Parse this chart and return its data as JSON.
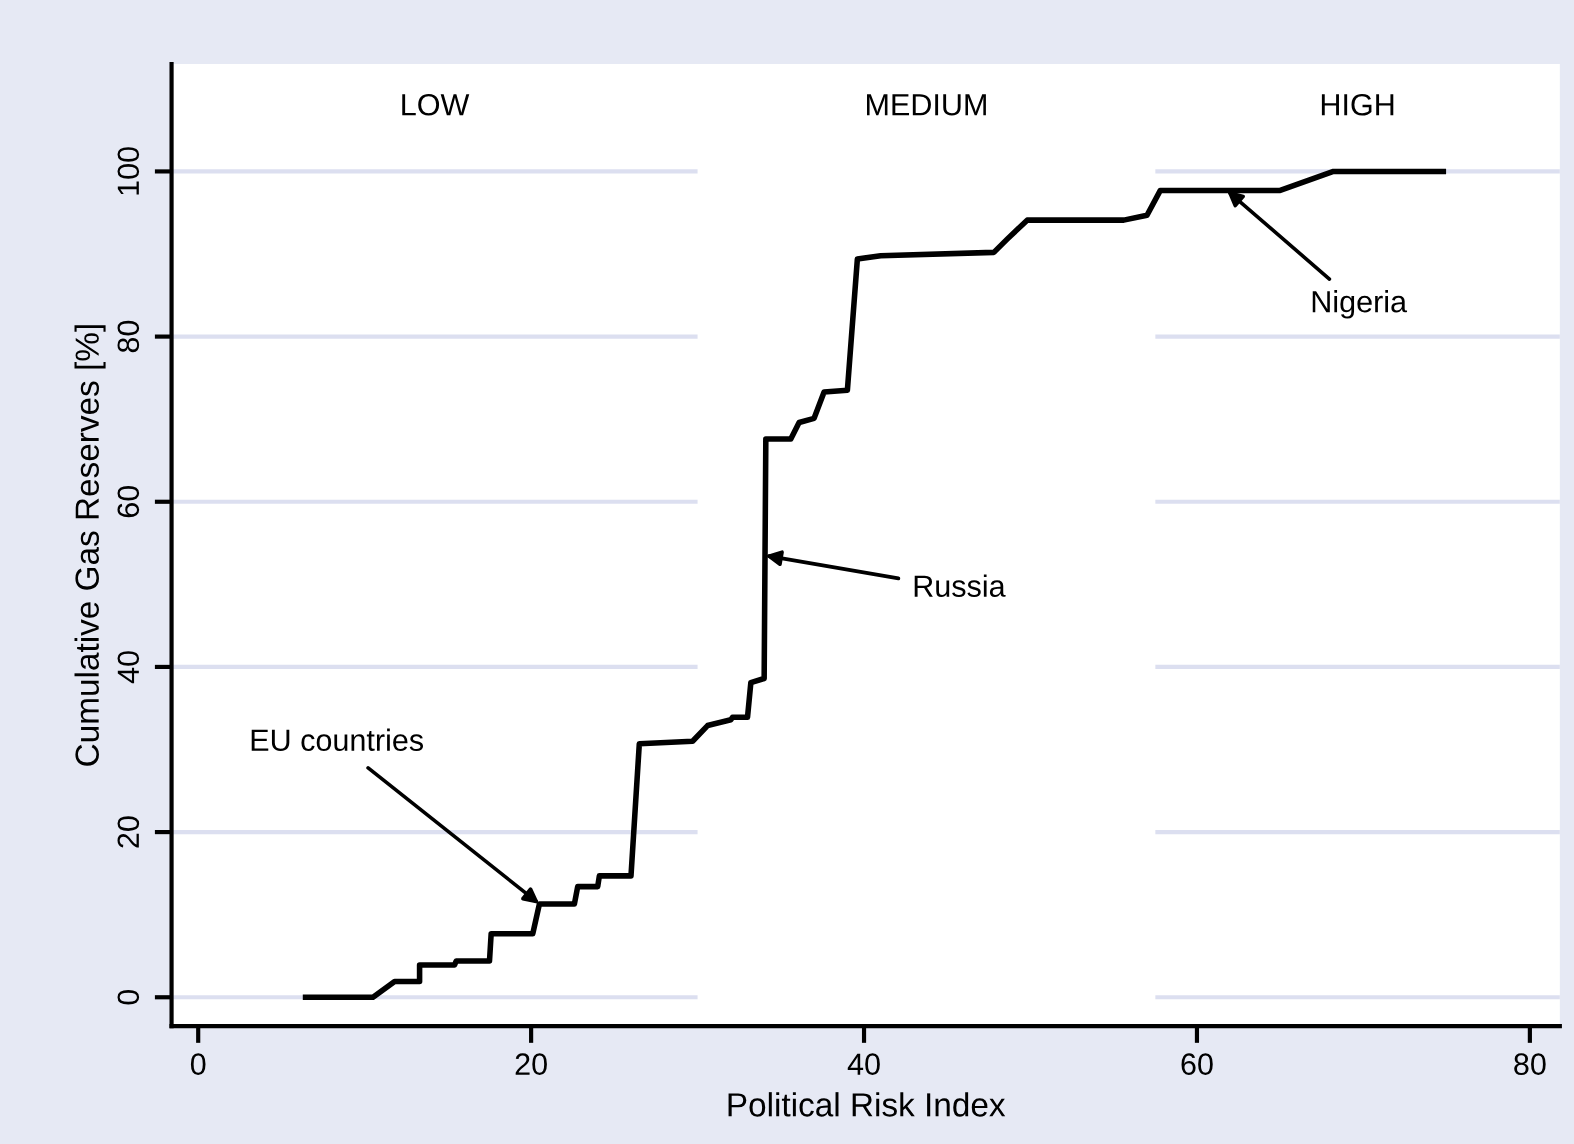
{
  "chart_data": {
    "type": "line",
    "xlabel": "Political Risk Index",
    "ylabel": "Cumulative Gas Reserves [%]",
    "x": [
      6.45,
      10.5,
      11.8,
      13.3,
      13.3,
      15.4,
      15.5,
      17.5,
      17.6,
      20.1,
      20.5,
      22.6,
      22.8,
      24.0,
      24.1,
      26.0,
      26.5,
      29.7,
      30.6,
      32.0,
      32.1,
      33.0,
      33.2,
      34.0,
      34.1,
      35.6,
      36.1,
      37.0,
      37.6,
      39.0,
      39.6,
      41.0,
      47.8,
      48.6,
      49.8,
      55.6,
      57.0,
      57.8,
      65.0,
      68.2,
      74.8
    ],
    "series": [
      {
        "color": "#000000",
        "values": [
          0,
          0,
          1.9,
          1.9,
          3.9,
          3.9,
          4.4,
          4.4,
          7.7,
          7.7,
          11.3,
          11.3,
          13.4,
          13.4,
          14.7,
          14.7,
          30.7,
          31.0,
          32.9,
          33.6,
          33.9,
          33.9,
          38.1,
          38.6,
          67.6,
          67.6,
          69.6,
          70.1,
          73.3,
          73.5,
          89.4,
          89.8,
          90.2,
          91.8,
          94.1,
          94.1,
          94.7,
          97.7,
          97.7,
          100,
          100
        ]
      }
    ],
    "xlim": [
      -1.6,
      81.8
    ],
    "ylim": [
      -3.5,
      113
    ],
    "xticks": [
      0,
      20,
      40,
      60,
      80
    ],
    "yticks": [
      0,
      20,
      40,
      60,
      80,
      100
    ],
    "grid": "y",
    "line_style": "solid",
    "marker": "none",
    "bands": [
      {
        "axis": "x",
        "from": 30,
        "to": 57.5,
        "label": "MEDIUM",
        "color": "#ffffff"
      }
    ],
    "annotations": [
      "LOW",
      "HIGH",
      {
        "text": "EU countries",
        "x": 20.5,
        "y": 11.3
      },
      {
        "text": "Russia",
        "x": 34.05,
        "y": 53.5
      },
      {
        "text": "Nigeria",
        "x": 61.8,
        "y": 97.7
      }
    ]
  }
}
